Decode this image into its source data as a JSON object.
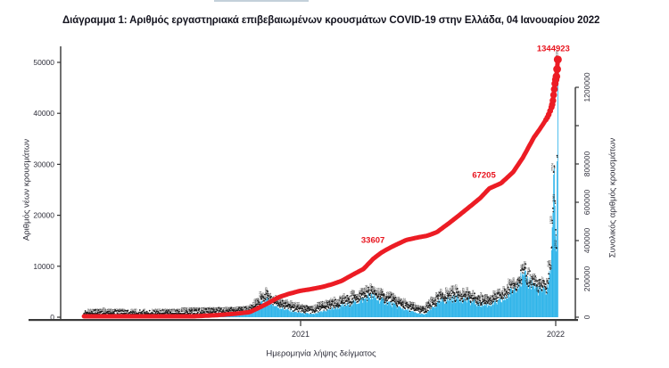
{
  "page": {
    "background": "#ffffff"
  },
  "chart_data": {
    "type": "combo-bar-line",
    "title": "Διάγραμμα 1: Αριθμός εργαστηριακά επιβεβαιωμένων κρουσμάτων COVID-19 στην Ελλάδα, 04 Ιανουαρίου 2022",
    "legend": "none",
    "grid": "off",
    "x_axis": {
      "label": "Ημερομηνία λήψης δείγματος",
      "ticks": [
        {
          "label": "2021",
          "date": "2021-01-01"
        },
        {
          "label": "2022",
          "date": "2022-01-01"
        }
      ],
      "range": [
        "2020-02-15",
        "2022-01-10"
      ]
    },
    "y_left": {
      "label": "Αριθμός νέων κρουσμάτων",
      "range": [
        0,
        50000
      ],
      "tick_values": [
        0,
        10000,
        20000,
        30000,
        40000,
        50000
      ],
      "tick_labels": [
        "0",
        "10000",
        "20000",
        "30000",
        "40000",
        "50000"
      ]
    },
    "y_right": {
      "label": "Συνολικός αριθμός κρουσμάτων",
      "range": [
        0,
        1200000
      ],
      "tick_values": [
        0,
        200000,
        400000,
        600000,
        800000,
        1000000,
        1200000
      ],
      "tick_labels": [
        "0",
        "200000",
        "400000",
        "600000",
        "800000",
        "",
        "1200000"
      ]
    },
    "colors": {
      "bar": "#2fb4e9",
      "line": "#ec1c24",
      "annotation": "#e8131d",
      "axis": "#333333",
      "label_dots": "#1a1a1a"
    },
    "series": [
      {
        "name": "daily_new_cases",
        "type": "bar",
        "axis": "left",
        "color": "#2fb4e9",
        "points": [
          [
            "2020-02-26",
            3
          ],
          [
            "2020-03-10",
            40
          ],
          [
            "2020-03-25",
            95
          ],
          [
            "2020-04-10",
            60
          ],
          [
            "2020-05-01",
            25
          ],
          [
            "2020-06-01",
            20
          ],
          [
            "2020-07-01",
            35
          ],
          [
            "2020-07-25",
            110
          ],
          [
            "2020-08-15",
            250
          ],
          [
            "2020-09-01",
            330
          ],
          [
            "2020-09-20",
            380
          ],
          [
            "2020-10-05",
            450
          ],
          [
            "2020-10-20",
            650
          ],
          [
            "2020-10-28",
            1200
          ],
          [
            "2020-11-05",
            2400
          ],
          [
            "2020-11-12",
            3300
          ],
          [
            "2020-11-18",
            2800
          ],
          [
            "2020-11-25",
            2200
          ],
          [
            "2020-12-05",
            1700
          ],
          [
            "2020-12-15",
            1300
          ],
          [
            "2020-12-28",
            900
          ],
          [
            "2021-01-08",
            700
          ],
          [
            "2021-01-20",
            550
          ],
          [
            "2021-02-02",
            1100
          ],
          [
            "2021-02-12",
            1500
          ],
          [
            "2021-02-25",
            1900
          ],
          [
            "2021-03-10",
            2400
          ],
          [
            "2021-03-22",
            2900
          ],
          [
            "2021-04-02",
            3400
          ],
          [
            "2021-04-10",
            4000
          ],
          [
            "2021-04-22",
            3400
          ],
          [
            "2021-05-05",
            2900
          ],
          [
            "2021-05-18",
            2100
          ],
          [
            "2021-06-01",
            1400
          ],
          [
            "2021-06-15",
            800
          ],
          [
            "2021-06-28",
            500
          ],
          [
            "2021-07-08",
            1700
          ],
          [
            "2021-07-20",
            2900
          ],
          [
            "2021-08-03",
            3400
          ],
          [
            "2021-08-17",
            3600
          ],
          [
            "2021-08-30",
            3100
          ],
          [
            "2021-09-12",
            2500
          ],
          [
            "2021-09-25",
            2300
          ],
          [
            "2021-10-08",
            2700
          ],
          [
            "2021-10-20",
            3400
          ],
          [
            "2021-11-01",
            5200
          ],
          [
            "2021-11-09",
            6900
          ],
          [
            "2021-11-18",
            7200
          ],
          [
            "2021-11-26",
            6600
          ],
          [
            "2021-12-04",
            5600
          ],
          [
            "2021-12-12",
            4900
          ],
          [
            "2021-12-18",
            4800
          ],
          [
            "2021-12-22",
            6700
          ],
          [
            "2021-12-25",
            9500
          ],
          [
            "2021-12-28",
            21000
          ],
          [
            "2021-12-29",
            28000
          ],
          [
            "2021-12-30",
            28500
          ],
          [
            "2021-12-31",
            21500
          ],
          [
            "2022-01-01",
            16000
          ],
          [
            "2022-01-02",
            13000
          ],
          [
            "2022-01-03",
            31000
          ],
          [
            "2022-01-04",
            50126
          ]
        ]
      },
      {
        "name": "cumulative_cases",
        "type": "line",
        "axis": "right",
        "color": "#ec1c24",
        "points": [
          [
            "2020-02-26",
            3
          ],
          [
            "2020-04-01",
            1314
          ],
          [
            "2020-05-01",
            2600
          ],
          [
            "2020-06-01",
            2900
          ],
          [
            "2020-07-01",
            3400
          ],
          [
            "2020-08-01",
            4700
          ],
          [
            "2020-09-01",
            10300
          ],
          [
            "2020-10-01",
            18500
          ],
          [
            "2020-10-20",
            26500
          ],
          [
            "2020-11-01",
            46900
          ],
          [
            "2020-11-15",
            72500
          ],
          [
            "2020-12-01",
            105000
          ],
          [
            "2020-12-15",
            122000
          ],
          [
            "2021-01-01",
            138000
          ],
          [
            "2021-01-15",
            146000
          ],
          [
            "2021-02-01",
            158000
          ],
          [
            "2021-02-15",
            172000
          ],
          [
            "2021-03-01",
            190000
          ],
          [
            "2021-03-15",
            219000
          ],
          [
            "2021-04-01",
            252000
          ],
          [
            "2021-04-15",
            305000
          ],
          [
            "2021-04-26",
            336074
          ],
          [
            "2021-05-10",
            365000
          ],
          [
            "2021-06-01",
            403000
          ],
          [
            "2021-06-20",
            418000
          ],
          [
            "2021-07-01",
            425000
          ],
          [
            "2021-07-15",
            444000
          ],
          [
            "2021-08-01",
            490000
          ],
          [
            "2021-08-15",
            530000
          ],
          [
            "2021-09-01",
            580000
          ],
          [
            "2021-09-15",
            622000
          ],
          [
            "2021-09-28",
            672054
          ],
          [
            "2021-10-15",
            700000
          ],
          [
            "2021-11-01",
            757000
          ],
          [
            "2021-11-15",
            833000
          ],
          [
            "2021-12-01",
            940000
          ],
          [
            "2021-12-08",
            975000
          ],
          [
            "2021-12-14",
            1008000
          ],
          [
            "2021-12-18",
            1031000
          ],
          [
            "2021-12-20",
            1043000
          ],
          [
            "2021-12-22",
            1058000
          ],
          [
            "2021-12-24",
            1077000
          ],
          [
            "2021-12-26",
            1096000
          ],
          [
            "2021-12-27",
            1110000
          ],
          [
            "2021-12-28",
            1131000
          ],
          [
            "2021-12-29",
            1160000
          ],
          [
            "2021-12-30",
            1190000
          ],
          [
            "2021-12-31",
            1219000
          ],
          [
            "2022-01-01",
            1240000
          ],
          [
            "2022-01-02",
            1257000
          ],
          [
            "2022-01-03",
            1294797
          ],
          [
            "2022-01-04",
            1344923
          ]
        ]
      }
    ],
    "annotations": [
      {
        "text": "33607",
        "date": "2021-04-26",
        "value": 336074,
        "note": "partially covered by line"
      },
      {
        "text": "67205",
        "date": "2021-09-28",
        "value": 672054,
        "note": "partially covered by line"
      },
      {
        "text": "1344923",
        "date": "2022-01-04",
        "value": 1344923
      }
    ]
  }
}
